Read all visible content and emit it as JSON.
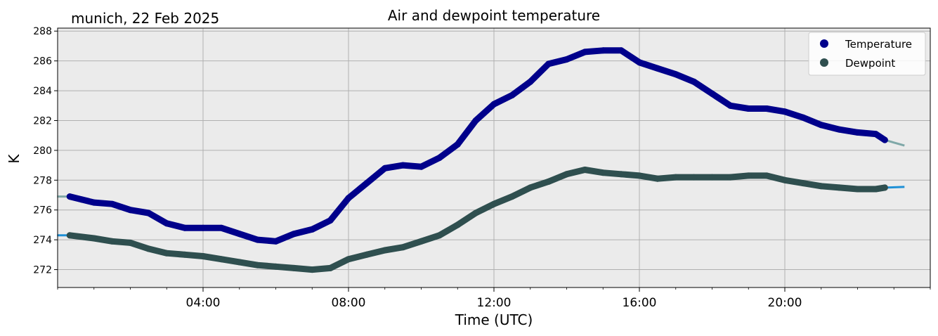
{
  "chart_data": {
    "type": "line",
    "title": "Air and dewpoint temperature",
    "subtitle": "munich, 22 Feb 2025",
    "xlabel": "Time (UTC)",
    "ylabel": "K",
    "xlim": [
      "00:00",
      "24:00"
    ],
    "ylim": [
      270.8,
      288.2
    ],
    "xticks": [
      "04:00",
      "08:00",
      "12:00",
      "16:00",
      "20:00"
    ],
    "yticks": [
      "272",
      "274",
      "276",
      "278",
      "280",
      "282",
      "284",
      "286",
      "288"
    ],
    "grid": true,
    "legend_position": "top-right",
    "background": "#ebebeb",
    "series": [
      {
        "name": "Temperature",
        "color": "#00008b",
        "raw_color": "#7fa8a8",
        "x": [
          "00:20",
          "00:40",
          "01:00",
          "01:30",
          "02:00",
          "02:30",
          "03:00",
          "03:30",
          "04:00",
          "04:30",
          "05:00",
          "05:30",
          "06:00",
          "06:30",
          "07:00",
          "07:30",
          "08:00",
          "08:30",
          "09:00",
          "09:30",
          "10:00",
          "10:30",
          "11:00",
          "11:30",
          "12:00",
          "12:30",
          "13:00",
          "13:30",
          "14:00",
          "14:30",
          "15:00",
          "15:30",
          "16:00",
          "16:30",
          "17:00",
          "17:30",
          "18:00",
          "18:30",
          "19:00",
          "19:30",
          "20:00",
          "20:30",
          "21:00",
          "21:30",
          "22:00",
          "22:30",
          "22:45"
        ],
        "values": [
          276.9,
          276.7,
          276.5,
          276.4,
          276.0,
          275.8,
          275.1,
          274.8,
          274.8,
          274.8,
          274.4,
          274.0,
          273.9,
          274.4,
          274.7,
          275.3,
          276.8,
          277.8,
          278.8,
          279.0,
          278.9,
          279.5,
          280.4,
          282.0,
          283.1,
          283.7,
          284.6,
          285.8,
          286.1,
          286.6,
          286.7,
          286.7,
          285.9,
          285.5,
          285.1,
          284.6,
          283.8,
          283.0,
          282.8,
          282.8,
          282.6,
          282.2,
          281.7,
          281.4,
          281.2,
          281.1,
          280.7
        ]
      },
      {
        "name": "Dewpoint",
        "color": "#2f4f4f",
        "raw_color": "#1e90d6",
        "x": [
          "00:20",
          "01:00",
          "01:30",
          "02:00",
          "02:30",
          "03:00",
          "03:30",
          "04:00",
          "04:30",
          "05:00",
          "05:30",
          "06:00",
          "06:30",
          "07:00",
          "07:30",
          "08:00",
          "08:30",
          "09:00",
          "09:30",
          "10:00",
          "10:30",
          "11:00",
          "11:30",
          "12:00",
          "12:30",
          "13:00",
          "13:30",
          "14:00",
          "14:30",
          "15:00",
          "15:30",
          "16:00",
          "16:30",
          "17:00",
          "17:30",
          "18:00",
          "18:30",
          "19:00",
          "19:30",
          "20:00",
          "20:30",
          "21:00",
          "21:30",
          "22:00",
          "22:30",
          "22:45"
        ],
        "values": [
          274.3,
          274.1,
          273.9,
          273.8,
          273.4,
          273.1,
          273.0,
          272.9,
          272.7,
          272.5,
          272.3,
          272.2,
          272.1,
          272.0,
          272.1,
          272.7,
          273.0,
          273.3,
          273.5,
          273.9,
          274.3,
          275.0,
          275.8,
          276.4,
          276.9,
          277.5,
          277.9,
          278.4,
          278.7,
          278.5,
          278.4,
          278.3,
          278.1,
          278.2,
          278.2,
          278.2,
          278.2,
          278.3,
          278.3,
          278.0,
          277.8,
          277.6,
          277.5,
          277.4,
          277.4,
          277.5
        ]
      }
    ]
  }
}
